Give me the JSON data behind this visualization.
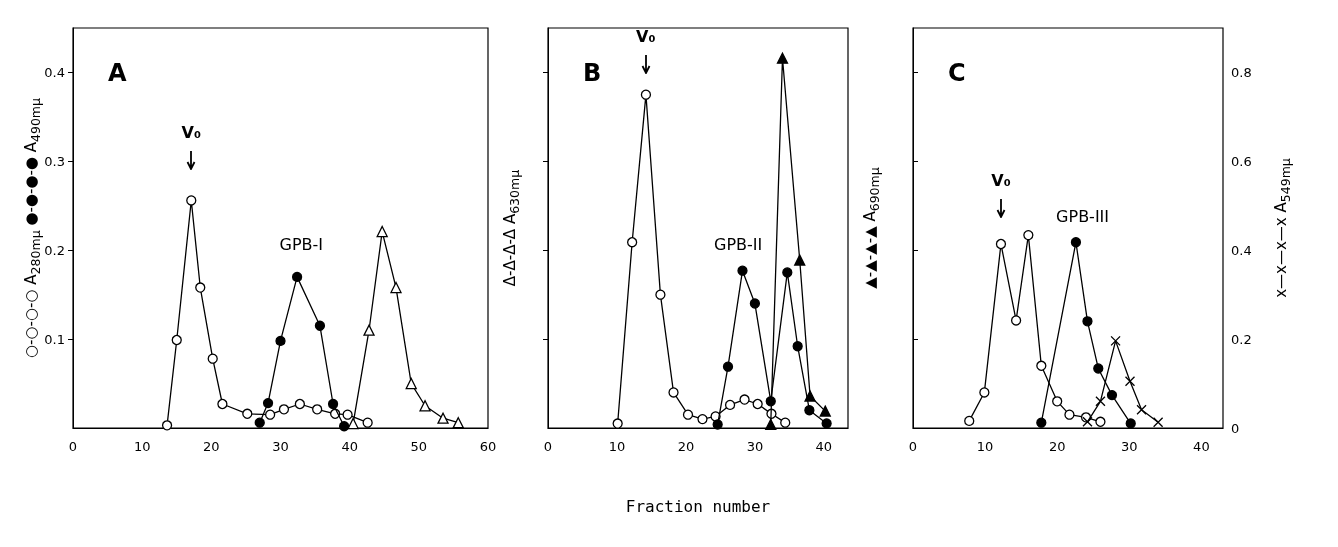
{
  "chart_data": [
    {
      "type": "line",
      "title": "A",
      "ylabel": "○-○-○-○ A$_{280mμ}$   ●-●-●-● A$_{490mμ}$",
      "y2label": "Δ-Δ-Δ-Δ A$_{630mμ}$",
      "xlim": [
        0,
        60
      ],
      "xticks": [
        0,
        10,
        20,
        30,
        40,
        50,
        60
      ],
      "ylim": [
        0,
        0.45
      ],
      "yticks": [
        0.1,
        0.2,
        0.3,
        0.4
      ],
      "series": [
        {
          "color": "#000000",
          "marker": "circle",
          "colors": [
            "#ffffff",
            "#ffffff",
            "#ffffff",
            "#ffffff",
            "#ffffff",
            "#ffffff",
            "#ffffff",
            "#ffffff",
            "#ffffff",
            "#ffffff",
            "#ffffff",
            "#ffffff",
            "#ffffff",
            "#ffffff"
          ],
          "x": [
            13.6,
            15.0,
            17.1,
            18.4,
            20.2,
            21.6,
            25.2,
            28.5,
            30.5,
            32.8,
            35.3,
            37.9,
            39.7,
            42.6
          ],
          "values": [
            0.003,
            0.099,
            0.256,
            0.158,
            0.078,
            0.027,
            0.016,
            0.015,
            0.021,
            0.027,
            0.021,
            0.016,
            0.015,
            0.006
          ]
        },
        {
          "color": "#000000",
          "marker": "circle",
          "x": [
            27.0,
            28.2,
            30.0,
            32.4,
            35.7,
            37.6,
            39.2
          ],
          "values": [
            0.006,
            0.028,
            0.098,
            0.17,
            0.115,
            0.027,
            0.002
          ]
        },
        {
          "color": "#000000",
          "marker": "triangle",
          "colors": [
            "#ffffff",
            "#ffffff",
            "#ffffff",
            "#ffffff",
            "#ffffff",
            "#ffffff",
            "#ffffff",
            "#ffffff"
          ],
          "x": [
            40.5,
            42.8,
            44.7,
            46.7,
            48.9,
            50.9,
            53.5,
            55.7
          ],
          "values": [
            0.005,
            0.11,
            0.221,
            0.158,
            0.05,
            0.025,
            0.011,
            0.006
          ]
        }
      ],
      "annotations": [
        "V₀",
        "GPB-I"
      ]
    },
    {
      "type": "line",
      "title": "B",
      "y2label": "▲-▲-▲-▲ A$_{690mμ}$",
      "xlabel": "Fraction number",
      "xlim": [
        0,
        43.5
      ],
      "xticks": [
        0,
        10,
        20,
        30,
        40
      ],
      "ylim": [
        0,
        0.45
      ],
      "yticks": [
        0.1,
        0.2,
        0.3,
        0.4
      ],
      "tick_labels": "x",
      "series": [
        {
          "color": "#000000",
          "marker": "circle",
          "colors": [
            "#ffffff",
            "#ffffff",
            "#ffffff",
            "#ffffff",
            "#ffffff",
            "#ffffff",
            "#ffffff",
            "#ffffff",
            "#ffffff",
            "#ffffff",
            "#ffffff",
            "#ffffff",
            "#ffffff"
          ],
          "x": [
            10.1,
            12.2,
            14.2,
            16.3,
            18.2,
            20.3,
            22.4,
            24.3,
            26.4,
            28.5,
            30.4,
            32.4,
            34.4
          ],
          "values": [
            0.005,
            0.209,
            0.375,
            0.15,
            0.04,
            0.015,
            0.01,
            0.013,
            0.026,
            0.032,
            0.027,
            0.016,
            0.006
          ]
        },
        {
          "color": "#000000",
          "marker": "circle",
          "x": [
            24.6,
            26.1,
            28.2,
            30.0,
            32.3,
            34.7,
            36.2,
            37.9,
            40.4
          ],
          "values": [
            0.004,
            0.069,
            0.177,
            0.14,
            0.03,
            0.175,
            0.092,
            0.02,
            0.005
          ]
        },
        {
          "color": "#000000",
          "marker": "triangle",
          "x": [
            32.3,
            34.0,
            36.5,
            38.0,
            40.2
          ],
          "values": [
            0.004,
            0.416,
            0.189,
            0.036,
            0.019
          ]
        }
      ],
      "annotations": [
        "V₀",
        "GPB-II"
      ]
    },
    {
      "type": "line",
      "title": "C",
      "y2label": "x—x—x—x A$_{549mμ}$",
      "xlim": [
        0,
        43
      ],
      "xticks": [
        0,
        10,
        20,
        30,
        40
      ],
      "y2lim": [
        0,
        0.9
      ],
      "y2ticks": [
        0,
        0.2,
        0.4,
        0.6,
        0.8
      ],
      "series": [
        {
          "color": "#000000",
          "marker": "circle",
          "axis": "y2",
          "colors": [
            "#ffffff",
            "#ffffff",
            "#ffffff",
            "#ffffff",
            "#ffffff",
            "#ffffff",
            "#ffffff",
            "#ffffff",
            "#ffffff",
            "#ffffff"
          ],
          "x": [
            7.8,
            9.9,
            12.2,
            14.3,
            16.0,
            17.8,
            20.0,
            21.7,
            24.0,
            26.0
          ],
          "values": [
            0.016,
            0.08,
            0.414,
            0.242,
            0.434,
            0.14,
            0.06,
            0.03,
            0.024,
            0.014
          ]
        },
        {
          "color": "#000000",
          "marker": "circle",
          "axis": "y2",
          "x": [
            17.8,
            22.6,
            24.2,
            25.7,
            27.6,
            30.2
          ],
          "values": [
            0.012,
            0.418,
            0.24,
            0.134,
            0.074,
            0.01
          ]
        },
        {
          "color": "#000000",
          "marker": "cross",
          "axis": "y2",
          "x": [
            24.2,
            26.0,
            28.1,
            30.1,
            31.7,
            34.0
          ],
          "values": [
            0.014,
            0.06,
            0.196,
            0.105,
            0.041,
            0.013
          ]
        }
      ],
      "annotations": [
        "V₀",
        "GPB-III"
      ]
    }
  ]
}
